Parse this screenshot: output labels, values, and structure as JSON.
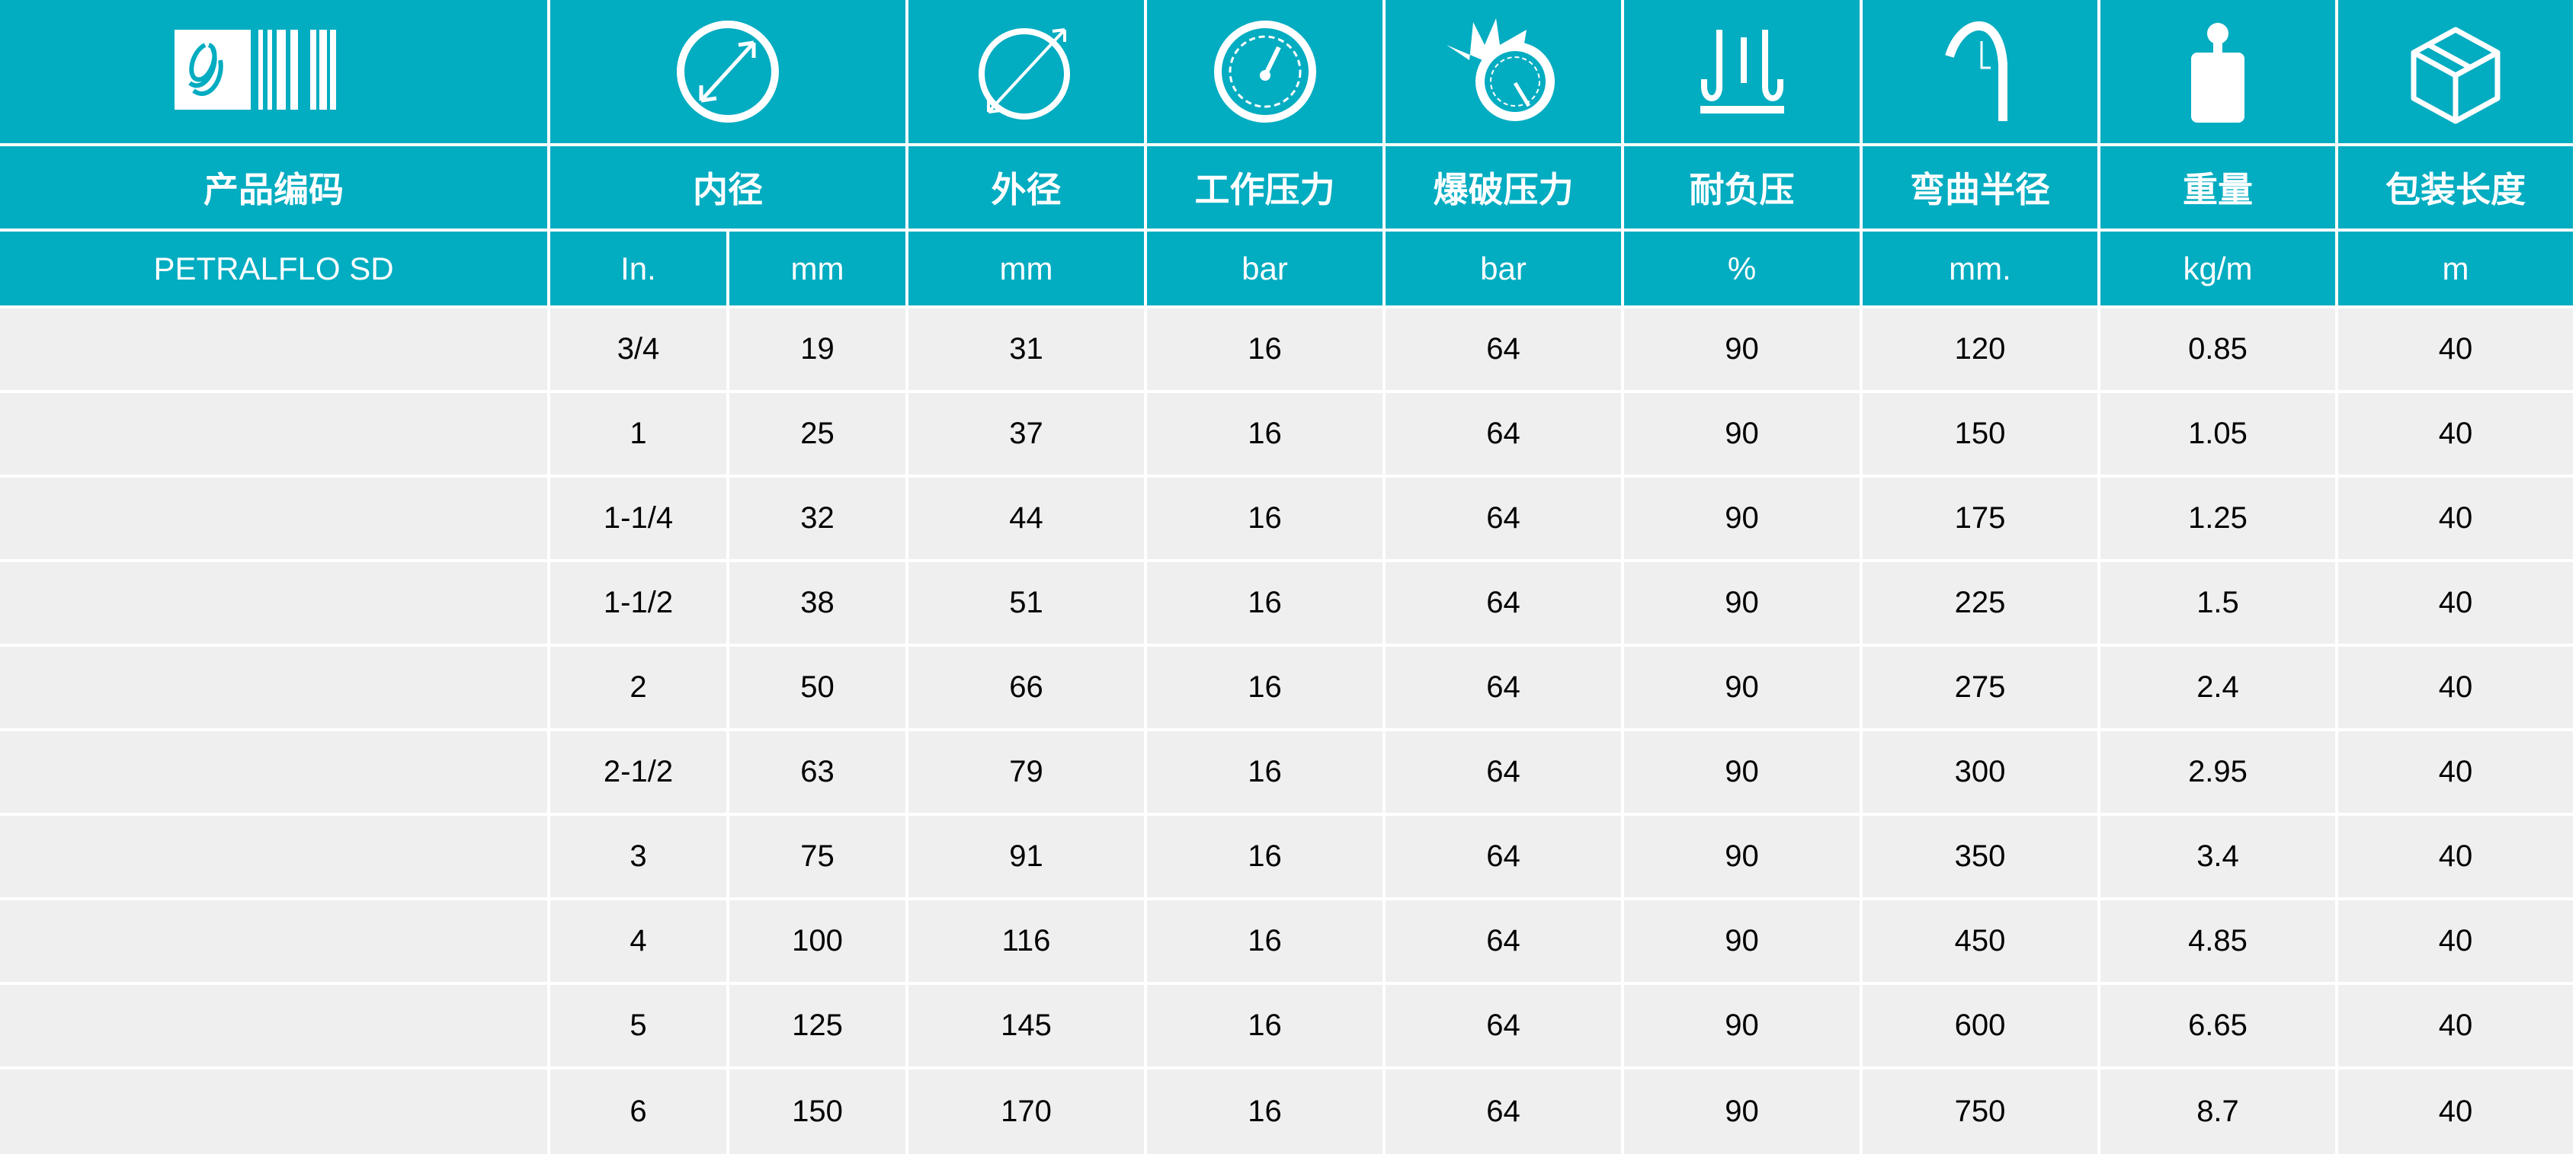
{
  "colors": {
    "header_bg": "#02acc1",
    "row_bg": "#efefef",
    "header_text": "#ffffff"
  },
  "icons": [
    "logo-barcode-icon",
    "inner-diameter-icon",
    "outer-diameter-icon",
    "working-pressure-gauge-icon",
    "burst-pressure-icon",
    "vacuum-icon",
    "bend-radius-icon",
    "weight-icon",
    "package-box-icon"
  ],
  "headers": [
    "产品编码",
    "内径",
    "外径",
    "工作压力",
    "爆破压力",
    "耐负压",
    "弯曲半径",
    "重量",
    "包装长度"
  ],
  "units": {
    "product": "PETRALFLO SD",
    "id_in": "In.",
    "id_mm": "mm",
    "od": "mm",
    "wp": "bar",
    "bp": "bar",
    "vac": "%",
    "bend": "mm.",
    "weight": "kg/m",
    "length": "m"
  },
  "rows": [
    [
      "",
      "3/4",
      "19",
      "31",
      "16",
      "64",
      "90",
      "120",
      "0.85",
      "40"
    ],
    [
      "",
      "1",
      "25",
      "37",
      "16",
      "64",
      "90",
      "150",
      "1.05",
      "40"
    ],
    [
      "",
      "1-1/4",
      "32",
      "44",
      "16",
      "64",
      "90",
      "175",
      "1.25",
      "40"
    ],
    [
      "",
      "1-1/2",
      "38",
      "51",
      "16",
      "64",
      "90",
      "225",
      "1.5",
      "40"
    ],
    [
      "",
      "2",
      "50",
      "66",
      "16",
      "64",
      "90",
      "275",
      "2.4",
      "40"
    ],
    [
      "",
      "2-1/2",
      "63",
      "79",
      "16",
      "64",
      "90",
      "300",
      "2.95",
      "40"
    ],
    [
      "",
      "3",
      "75",
      "91",
      "16",
      "64",
      "90",
      "350",
      "3.4",
      "40"
    ],
    [
      "",
      "4",
      "100",
      "116",
      "16",
      "64",
      "90",
      "450",
      "4.85",
      "40"
    ],
    [
      "",
      "5",
      "125",
      "145",
      "16",
      "64",
      "90",
      "600",
      "6.65",
      "40"
    ],
    [
      "",
      "6",
      "150",
      "170",
      "16",
      "64",
      "90",
      "750",
      "8.7",
      "40"
    ]
  ]
}
